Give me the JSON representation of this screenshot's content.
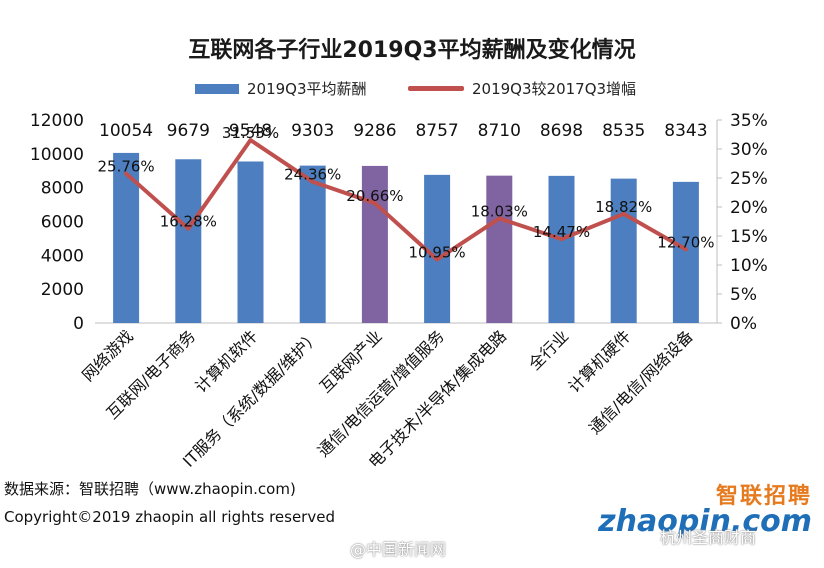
{
  "title": "互联网各子行业2019Q3平均薪酬及变化情况",
  "legend": {
    "bar_label": "2019Q3平均薪酬",
    "line_label": "2019Q3较2017Q3增幅"
  },
  "footer": {
    "source": "数据来源：智联招聘（www.zhaopin.com)",
    "copyright": "Copyright©2019 zhaopin all rights reserved"
  },
  "brand": {
    "cn": "智联招聘",
    "en": "zhaopin.com"
  },
  "watermarks": {
    "left": "@中国新闻网",
    "right": "杭州圣商财商"
  },
  "colors": {
    "bar": "#4d7fc0",
    "bar_highlight": "#8064a2",
    "line": "#c0504d"
  },
  "chart_data": {
    "type": "bar",
    "categories": [
      "网络游戏",
      "互联网/电子商务",
      "计算机软件",
      "IT服务（系统/数据/维护）",
      "互联网产业",
      "通信/电信运营/增值服务",
      "电子技术/半导体/集成电路",
      "全行业",
      "计算机硬件",
      "通信/电信/网络设备"
    ],
    "series": [
      {
        "name": "2019Q3平均薪酬",
        "type": "bar",
        "axis": "left",
        "values": [
          10054,
          9679,
          9548,
          9303,
          9286,
          8757,
          8710,
          8698,
          8535,
          8343
        ],
        "labels": [
          "10054",
          "9679",
          "9548",
          "9303",
          "9286",
          "8757",
          "8710",
          "8698",
          "8535",
          "8343"
        ],
        "highlight": [
          false,
          false,
          false,
          false,
          true,
          false,
          true,
          false,
          false,
          false
        ]
      },
      {
        "name": "2019Q3较2017Q3增幅",
        "type": "line",
        "axis": "right",
        "values": [
          25.76,
          16.28,
          31.53,
          24.36,
          20.66,
          10.95,
          18.03,
          14.47,
          18.82,
          12.7
        ],
        "labels": [
          "25.76%",
          "16.28%",
          "31.53%",
          "24.36%",
          "20.66%",
          "10.95%",
          "18.03%",
          "14.47%",
          "18.82%",
          "12.70%"
        ]
      }
    ],
    "y_left": {
      "min": 0,
      "max": 12000,
      "ticks": [
        "0",
        "2000",
        "4000",
        "6000",
        "8000",
        "10000",
        "12000"
      ]
    },
    "y_right": {
      "min": 0,
      "max": 35,
      "ticks": [
        "0%",
        "5%",
        "10%",
        "15%",
        "20%",
        "25%",
        "30%",
        "35%"
      ]
    },
    "grid": false,
    "legend_position": "top"
  }
}
